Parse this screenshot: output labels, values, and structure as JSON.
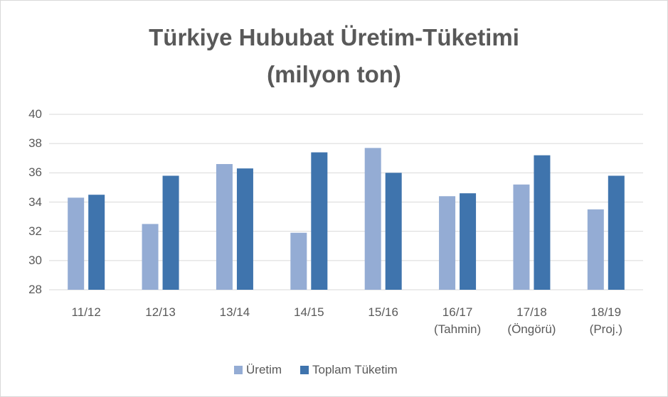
{
  "chart_data": {
    "type": "bar",
    "title": "Türkiye Hububat Üretim-Tüketimi\n(milyon ton)",
    "categories": [
      "11/12",
      "12/13",
      "13/14",
      "14/15",
      "15/16",
      "16/17\n(Tahmin)",
      "17/18\n(Öngörü)",
      "18/19\n(Proj.)"
    ],
    "series": [
      {
        "name": "Üretim",
        "color": "#94acd4",
        "values": [
          34.3,
          32.5,
          36.6,
          31.9,
          37.7,
          34.4,
          35.2,
          33.5
        ]
      },
      {
        "name": "Toplam Tüketim",
        "color": "#3f74ad",
        "values": [
          34.5,
          35.8,
          36.3,
          37.4,
          36.0,
          34.6,
          37.2,
          35.8
        ]
      }
    ],
    "ylim": [
      28,
      40
    ],
    "yticks": [
      28,
      30,
      32,
      34,
      36,
      38,
      40
    ],
    "grid": true,
    "legend": "bottom"
  }
}
